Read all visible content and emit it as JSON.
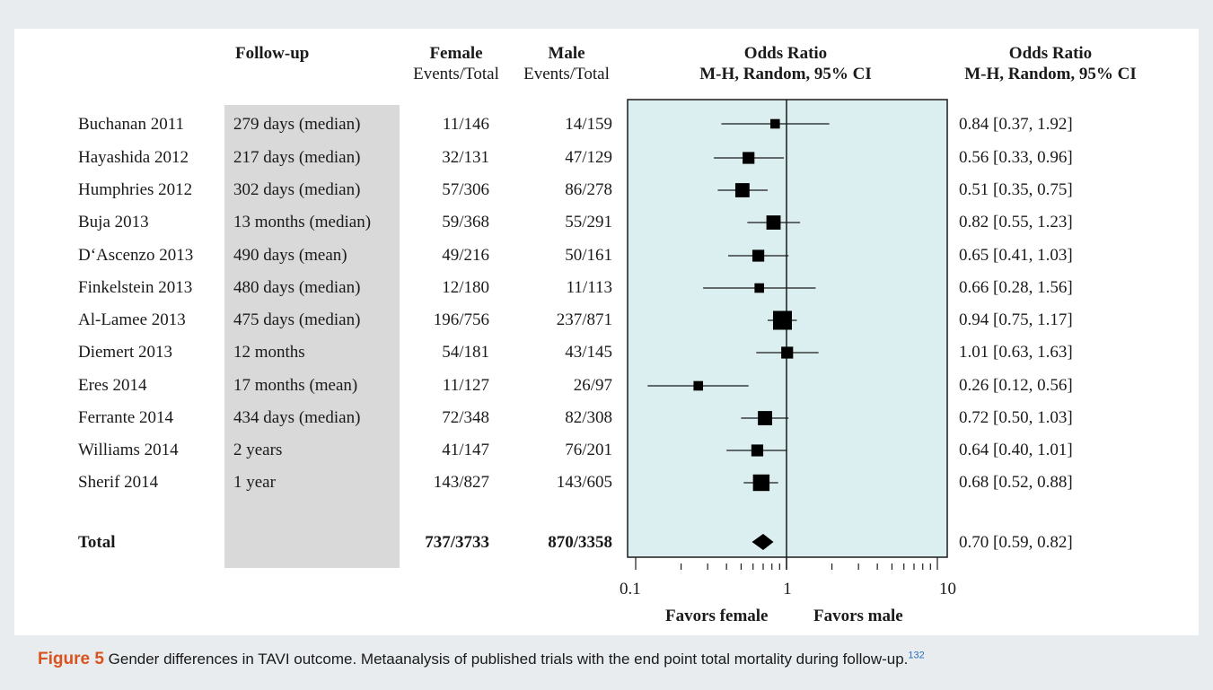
{
  "headers": {
    "follow_up": "Follow-up",
    "female": "Female",
    "female_sub": "Events/Total",
    "male": "Male",
    "male_sub": "Events/Total",
    "or_plot_1": "Odds Ratio",
    "or_plot_2": "M-H, Random, 95% CI",
    "or_text_1": "Odds Ratio",
    "or_text_2": "M-H, Random, 95% CI"
  },
  "rows": [
    {
      "study": "Buchanan 2011",
      "follow": "279 days (median)",
      "female": "11/146",
      "male": "14/159",
      "or_text": "0.84 [0.37, 1.92]"
    },
    {
      "study": "Hayashida 2012",
      "follow": "217 days (median)",
      "female": "32/131",
      "male": "47/129",
      "or_text": "0.56 [0.33, 0.96]"
    },
    {
      "study": "Humphries 2012",
      "follow": "302 days (median)",
      "female": "57/306",
      "male": "86/278",
      "or_text": "0.51 [0.35, 0.75]"
    },
    {
      "study": "Buja 2013",
      "follow": "13 months (median)",
      "female": "59/368",
      "male": "55/291",
      "or_text": "0.82 [0.55, 1.23]"
    },
    {
      "study": "D‘Ascenzo 2013",
      "follow": "490 days (mean)",
      "female": "49/216",
      "male": "50/161",
      "or_text": "0.65 [0.41, 1.03]"
    },
    {
      "study": "Finkelstein 2013",
      "follow": "480 days (median)",
      "female": "12/180",
      "male": "11/113",
      "or_text": "0.66 [0.28, 1.56]"
    },
    {
      "study": "Al-Lamee 2013",
      "follow": "475 days (median)",
      "female": "196/756",
      "male": "237/871",
      "or_text": "0.94 [0.75, 1.17]"
    },
    {
      "study": "Diemert 2013",
      "follow": "12 months",
      "female": "54/181",
      "male": "43/145",
      "or_text": "1.01 [0.63, 1.63]"
    },
    {
      "study": "Eres 2014",
      "follow": "17 months (mean)",
      "female": "11/127",
      "male": "26/97",
      "or_text": "0.26 [0.12, 0.56]"
    },
    {
      "study": "Ferrante 2014",
      "follow": "434 days (median)",
      "female": "72/348",
      "male": "82/308",
      "or_text": "0.72 [0.50, 1.03]"
    },
    {
      "study": "Williams 2014",
      "follow": "2 years",
      "female": "41/147",
      "male": "76/201",
      "or_text": "0.64 [0.40, 1.01]"
    },
    {
      "study": "Sherif 2014",
      "follow": "1 year",
      "female": "143/827",
      "male": "143/605",
      "or_text": "0.68 [0.52, 0.88]"
    }
  ],
  "total": {
    "study": "Total",
    "female": "737/3733",
    "male": "870/3358",
    "or_text": "0.70 [0.59, 0.82]"
  },
  "axis": {
    "tick_01": "0.1",
    "tick_1": "1",
    "tick_10": "10",
    "favors_female": "Favors female",
    "favors_male": "Favors male"
  },
  "caption": {
    "label": "Figure 5",
    "text": "Gender differences in TAVI outcome. Metaanalysis of published trials with the end point total mortality during follow-up.",
    "ref": "132"
  },
  "colors": {
    "plot_bg": "#dbeef0",
    "caption_label": "#d9531e",
    "shade": "#d9d9d9"
  },
  "chart_data": {
    "type": "forest",
    "x_scale": "log",
    "xlim": [
      0.1,
      10
    ],
    "null_line": 1,
    "series": [
      {
        "name": "Buchanan 2011",
        "or": 0.84,
        "lo": 0.37,
        "hi": 1.92,
        "weight": 1
      },
      {
        "name": "Hayashida 2012",
        "or": 0.56,
        "lo": 0.33,
        "hi": 0.96,
        "weight": 2
      },
      {
        "name": "Humphries 2012",
        "or": 0.51,
        "lo": 0.35,
        "hi": 0.75,
        "weight": 3
      },
      {
        "name": "Buja 2013",
        "or": 0.82,
        "lo": 0.55,
        "hi": 1.23,
        "weight": 3
      },
      {
        "name": "D‘Ascenzo 2013",
        "or": 0.65,
        "lo": 0.41,
        "hi": 1.03,
        "weight": 2
      },
      {
        "name": "Finkelstein 2013",
        "or": 0.66,
        "lo": 0.28,
        "hi": 1.56,
        "weight": 1
      },
      {
        "name": "Al-Lamee 2013",
        "or": 0.94,
        "lo": 0.75,
        "hi": 1.17,
        "weight": 5
      },
      {
        "name": "Diemert 2013",
        "or": 1.01,
        "lo": 0.63,
        "hi": 1.63,
        "weight": 2
      },
      {
        "name": "Eres 2014",
        "or": 0.26,
        "lo": 0.12,
        "hi": 0.56,
        "weight": 1
      },
      {
        "name": "Ferrante 2014",
        "or": 0.72,
        "lo": 0.5,
        "hi": 1.03,
        "weight": 3
      },
      {
        "name": "Williams 2014",
        "or": 0.64,
        "lo": 0.4,
        "hi": 1.01,
        "weight": 2
      },
      {
        "name": "Sherif 2014",
        "or": 0.68,
        "lo": 0.52,
        "hi": 0.88,
        "weight": 4
      }
    ],
    "total": {
      "or": 0.7,
      "lo": 0.59,
      "hi": 0.82
    }
  }
}
